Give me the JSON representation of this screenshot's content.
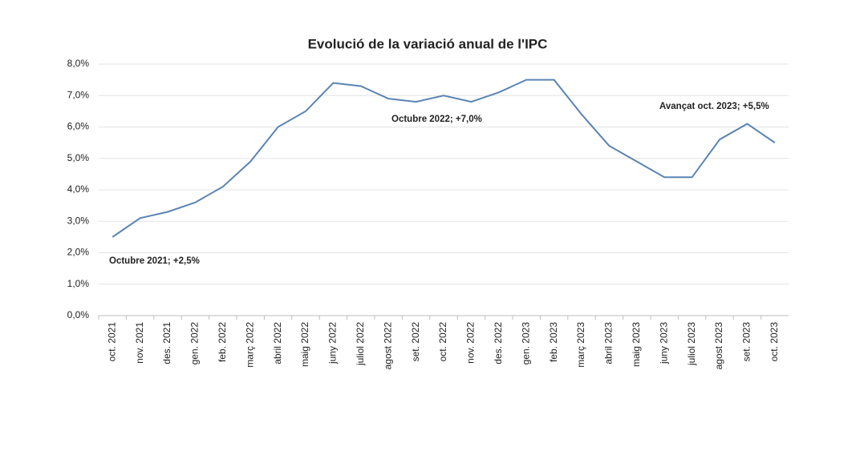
{
  "chart_data": {
    "type": "line",
    "title": "Evolució de la variació anual de l'IPC",
    "categories": [
      "oct. 2021",
      "nov. 2021",
      "des. 2021",
      "gen. 2022",
      "feb. 2022",
      "març 2022",
      "abril 2022",
      "maig 2022",
      "juny 2022",
      "juliol 2022",
      "agost 2022",
      "set. 2022",
      "oct. 2022",
      "nov. 2022",
      "des. 2022",
      "gen. 2023",
      "feb. 2023",
      "març 2023",
      "abril 2023",
      "maig 2023",
      "juny 2023",
      "juliol 2023",
      "agost 2023",
      "set. 2023",
      "oct. 2023"
    ],
    "values": [
      2.5,
      3.1,
      3.3,
      3.6,
      4.1,
      4.9,
      6.0,
      6.5,
      7.4,
      7.3,
      6.9,
      6.8,
      7.0,
      6.8,
      7.1,
      7.5,
      7.5,
      6.4,
      5.4,
      4.9,
      4.4,
      4.4,
      5.6,
      6.1,
      5.5
    ],
    "color": "#5b84b4",
    "ylim": [
      0,
      8
    ],
    "yticks": [
      {
        "value": 0,
        "label": "0,0%"
      },
      {
        "value": 1,
        "label": "1,0%"
      },
      {
        "value": 2,
        "label": "2,0%"
      },
      {
        "value": 3,
        "label": "3,0%"
      },
      {
        "value": 4,
        "label": "4,0%"
      },
      {
        "value": 5,
        "label": "5,0%"
      },
      {
        "value": 6,
        "label": "6,0%"
      },
      {
        "value": 7,
        "label": "7,0%"
      },
      {
        "value": 8,
        "label": "8,0%"
      }
    ],
    "grid": true,
    "annotations": [
      "Octubre 2021; +2,5%",
      "Octubre 2022;  +7,0%",
      "Avançat oct. 2023; +5,5%"
    ]
  }
}
